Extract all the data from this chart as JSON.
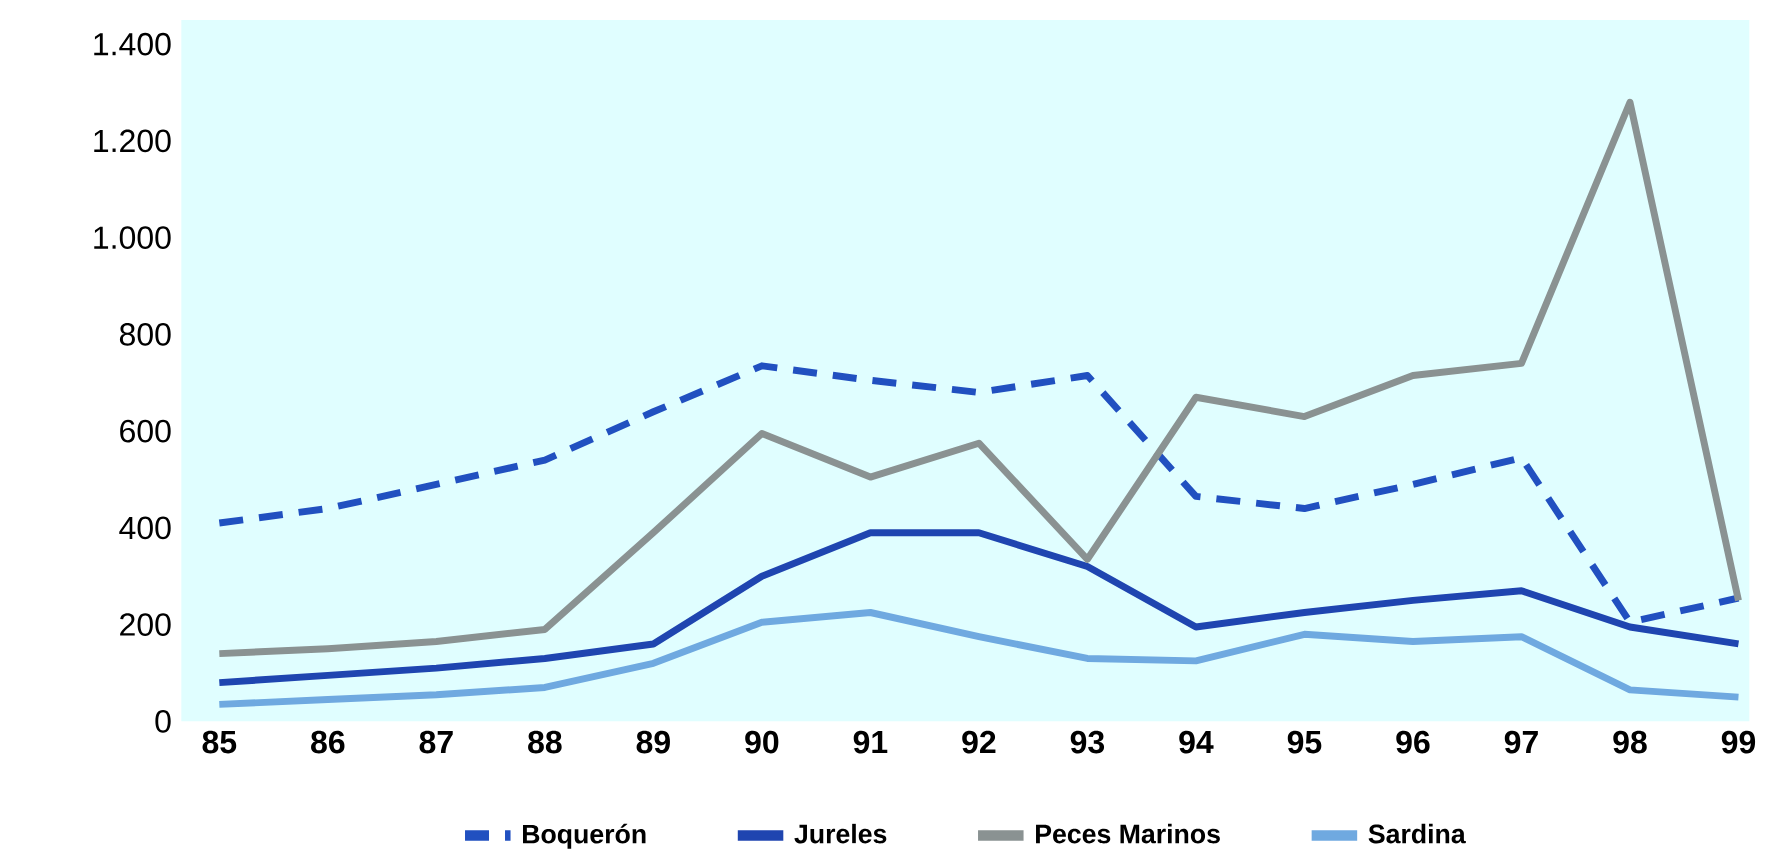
{
  "chart_data": {
    "type": "line",
    "categories": [
      "85",
      "86",
      "87",
      "88",
      "89",
      "90",
      "91",
      "92",
      "93",
      "94",
      "95",
      "96",
      "97",
      "98",
      "99"
    ],
    "series": [
      {
        "name": "Boquerón",
        "color": "#2150c0",
        "line_style": "dashed",
        "values": [
          410,
          440,
          490,
          540,
          640,
          735,
          705,
          680,
          715,
          465,
          440,
          490,
          545,
          205,
          255
        ]
      },
      {
        "name": "Jureles",
        "color": "#1f45b0",
        "values": [
          80,
          95,
          110,
          130,
          160,
          300,
          390,
          390,
          320,
          195,
          225,
          250,
          270,
          195,
          160
        ]
      },
      {
        "name": "Peces Marinos",
        "color": "#8a9292",
        "values": [
          140,
          150,
          165,
          190,
          390,
          595,
          505,
          575,
          335,
          670,
          630,
          715,
          740,
          1280,
          250
        ]
      },
      {
        "name": "Sardina",
        "color": "#6fa9e0",
        "values": [
          35,
          45,
          55,
          70,
          120,
          205,
          225,
          175,
          130,
          125,
          180,
          165,
          175,
          65,
          50
        ]
      }
    ],
    "ylim": [
      0,
      1450
    ],
    "yticks": [
      0,
      200,
      400,
      600,
      800,
      {
        "value": 1000,
        "label": "1.000"
      },
      {
        "value": 1200,
        "label": "1.200"
      },
      {
        "value": 1400,
        "label": "1.400"
      }
    ],
    "grid": false,
    "legend": "bottom",
    "marker": "none"
  }
}
